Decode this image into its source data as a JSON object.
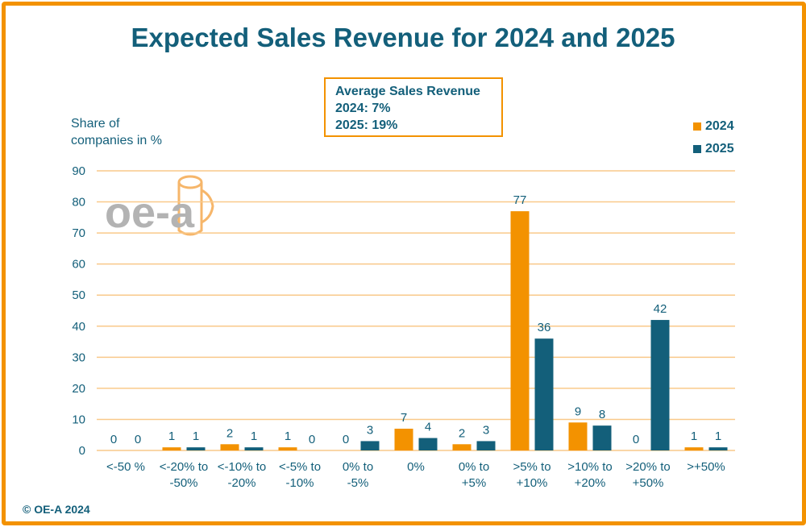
{
  "copyright": "© OE-A 2024",
  "avg_box": {
    "heading": "Average Sales Revenue",
    "line1": "2024: 7%",
    "line2": "2025: 19%"
  },
  "logo": {
    "text": "oe-a",
    "icon": "oe-a-logo-icon"
  },
  "colors": {
    "s2024": "#f39200",
    "s2025": "#135f7a",
    "grid": "#f9c98a",
    "text": "#135f7a",
    "frame": "#f39200"
  },
  "chart_data": {
    "type": "bar",
    "title": "Expected Sales Revenue for 2024 and 2025",
    "ylabel_line1": "Share of",
    "ylabel_line2": "companies in %",
    "ylim": [
      0,
      90
    ],
    "yticks": [
      0,
      10,
      20,
      30,
      40,
      50,
      60,
      70,
      80,
      90
    ],
    "grid": true,
    "legend_position": "top-right",
    "categories": [
      [
        "<-50 %"
      ],
      [
        "<-20% to",
        "-50%"
      ],
      [
        "<-10% to",
        "-20%"
      ],
      [
        "<-5% to",
        "-10%"
      ],
      [
        "0% to",
        "-5%"
      ],
      [
        "0%"
      ],
      [
        "0% to",
        "+5%"
      ],
      [
        ">5% to",
        "+10%"
      ],
      [
        ">10% to",
        "+20%"
      ],
      [
        ">20% to",
        "+50%"
      ],
      [
        ">+50%"
      ]
    ],
    "series": [
      {
        "name": "2024",
        "color": "#f39200",
        "values": [
          0,
          1,
          2,
          1,
          0,
          7,
          2,
          77,
          9,
          0,
          1
        ]
      },
      {
        "name": "2025",
        "color": "#135f7a",
        "values": [
          0,
          1,
          1,
          0,
          3,
          4,
          3,
          36,
          8,
          42,
          1
        ]
      }
    ]
  }
}
